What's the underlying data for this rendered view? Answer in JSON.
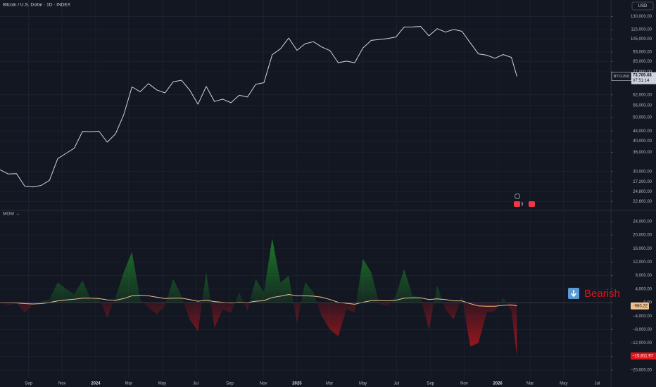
{
  "chart_data": [
    {
      "type": "line",
      "title": "Bitcoin / U.S. Dollar · 1D · INDEX",
      "currency": "USD",
      "symbol": "BTCUSD",
      "last_value_label": "73,769.68",
      "countdown": "07:51:14",
      "badge": "3",
      "log_scale": true,
      "color": "#d1d4dc",
      "xlim": [
        "2023-07-11",
        "2026-07-26"
      ],
      "ylim": [
        20900,
        152000
      ],
      "yticks": [
        {
          "value": 130000,
          "label": "130,000.00"
        },
        {
          "value": 115000,
          "label": "115,000.00"
        },
        {
          "value": 105000,
          "label": "105,000.00"
        },
        {
          "value": 93000,
          "label": "93,000.00"
        },
        {
          "value": 85000,
          "label": "85,000.00"
        },
        {
          "value": 77000,
          "label": "77,000.00"
        },
        {
          "value": 62000,
          "label": "62,000.00"
        },
        {
          "value": 56000,
          "label": "56,000.00"
        },
        {
          "value": 50000,
          "label": "50,000.00"
        },
        {
          "value": 44000,
          "label": "44,000.00"
        },
        {
          "value": 40000,
          "label": "40,000.00"
        },
        {
          "value": 36000,
          "label": "36,000.00"
        },
        {
          "value": 30000,
          "label": "30,000.00"
        },
        {
          "value": 27200,
          "label": "27,200.00"
        },
        {
          "value": 24800,
          "label": "24,800.00"
        },
        {
          "value": 22600,
          "label": "22,600.00"
        }
      ],
      "x": [
        "2023-07-11",
        "2023-07-26",
        "2023-08-10",
        "2023-08-25",
        "2023-09-09",
        "2023-09-24",
        "2023-10-09",
        "2023-10-24",
        "2023-11-08",
        "2023-11-23",
        "2023-12-08",
        "2023-12-23",
        "2024-01-07",
        "2024-01-22",
        "2024-02-06",
        "2024-02-21",
        "2024-03-07",
        "2024-03-22",
        "2024-04-06",
        "2024-04-21",
        "2024-05-06",
        "2024-05-21",
        "2024-06-05",
        "2024-06-20",
        "2024-07-05",
        "2024-07-20",
        "2024-08-04",
        "2024-08-19",
        "2024-09-03",
        "2024-09-18",
        "2024-10-03",
        "2024-10-18",
        "2024-11-02",
        "2024-11-17",
        "2024-12-02",
        "2024-12-17",
        "2025-01-01",
        "2025-01-16",
        "2025-01-31",
        "2025-02-15",
        "2025-03-02",
        "2025-03-17",
        "2025-04-01",
        "2025-04-16",
        "2025-05-01",
        "2025-05-16",
        "2025-05-31",
        "2025-06-15",
        "2025-06-30",
        "2025-07-15",
        "2025-07-30",
        "2025-08-14",
        "2025-08-29",
        "2025-09-13",
        "2025-09-28",
        "2025-10-13",
        "2025-10-28",
        "2025-11-12",
        "2025-11-27",
        "2025-12-12",
        "2025-12-27",
        "2026-01-11",
        "2026-01-26",
        "2026-02-05"
      ],
      "values": [
        30500,
        29300,
        29400,
        26100,
        25900,
        26300,
        27600,
        33900,
        35600,
        37400,
        43800,
        43700,
        43900,
        39600,
        42800,
        51300,
        66800,
        63800,
        68900,
        64900,
        63100,
        70100,
        71100,
        64800,
        56700,
        67100,
        58200,
        59500,
        57500,
        61700,
        60700,
        68400,
        69500,
        90500,
        95800,
        106000,
        94400,
        100500,
        102400,
        97500,
        94200,
        84000,
        85200,
        84000,
        96500,
        103700,
        104600,
        105500,
        107100,
        117700,
        117800,
        118300,
        108300,
        115900,
        112200,
        115000,
        113000,
        101500,
        91300,
        90200,
        87600,
        90700,
        88300,
        73769.68
      ]
    },
    {
      "type": "area",
      "title": "MOM →",
      "annotation": "Bearish",
      "current_value_label": "−15,811.97",
      "xlim": [
        "2023-07-11",
        "2026-07-26"
      ],
      "ylim": [
        -22500,
        27100
      ],
      "yticks": [
        {
          "value": 24000,
          "label": "24,000.00"
        },
        {
          "value": 20000,
          "label": "20,000.00"
        },
        {
          "value": 16000,
          "label": "16,000.00"
        },
        {
          "value": 12000,
          "label": "12,000.00"
        },
        {
          "value": 8000,
          "label": "8,000.00"
        },
        {
          "value": 4000,
          "label": "4,000.00"
        },
        {
          "value": 0,
          "label": "0.00"
        },
        {
          "value": -4000,
          "label": "−4,000.00"
        },
        {
          "value": -8000,
          "label": "−8,000.00"
        },
        {
          "value": -12000,
          "label": "−12,000.00"
        },
        {
          "value": -16000,
          "label": "−16,000.00"
        },
        {
          "value": -20000,
          "label": "−20,000.00"
        }
      ],
      "xticks": [
        {
          "value": "2023-09-01",
          "label": "Sep"
        },
        {
          "value": "2023-11-01",
          "label": "Nov"
        },
        {
          "value": "2024-01-01",
          "label": "2024"
        },
        {
          "value": "2024-03-01",
          "label": "Mar"
        },
        {
          "value": "2024-05-01",
          "label": "May"
        },
        {
          "value": "2024-07-01",
          "label": "Jul"
        },
        {
          "value": "2024-09-01",
          "label": "Sep"
        },
        {
          "value": "2024-11-01",
          "label": "Nov"
        },
        {
          "value": "2025-01-01",
          "label": "2025"
        },
        {
          "value": "2025-03-01",
          "label": "Mar"
        },
        {
          "value": "2025-05-01",
          "label": "May"
        },
        {
          "value": "2025-07-01",
          "label": "Jul"
        },
        {
          "value": "2025-09-01",
          "label": "Sep"
        },
        {
          "value": "2025-11-01",
          "label": "Nov"
        },
        {
          "value": "2026-01-01",
          "label": "2026"
        },
        {
          "value": "2026-03-01",
          "label": "Mar"
        },
        {
          "value": "2026-05-01",
          "label": "May"
        },
        {
          "value": "2026-07-01",
          "label": "Jul"
        }
      ],
      "x": [
        "2023-07-11",
        "2023-07-26",
        "2023-08-10",
        "2023-08-25",
        "2023-09-09",
        "2023-09-24",
        "2023-10-09",
        "2023-10-24",
        "2023-11-08",
        "2023-11-23",
        "2023-12-08",
        "2023-12-23",
        "2024-01-07",
        "2024-01-22",
        "2024-02-06",
        "2024-02-21",
        "2024-03-07",
        "2024-03-22",
        "2024-04-06",
        "2024-04-21",
        "2024-05-06",
        "2024-05-21",
        "2024-06-05",
        "2024-06-20",
        "2024-07-05",
        "2024-07-20",
        "2024-08-04",
        "2024-08-19",
        "2024-09-03",
        "2024-09-18",
        "2024-10-03",
        "2024-10-18",
        "2024-11-02",
        "2024-11-17",
        "2024-12-02",
        "2024-12-17",
        "2025-01-01",
        "2025-01-16",
        "2025-01-31",
        "2025-02-15",
        "2025-03-02",
        "2025-03-17",
        "2025-04-01",
        "2025-04-16",
        "2025-05-01",
        "2025-05-16",
        "2025-05-31",
        "2025-06-15",
        "2025-06-30",
        "2025-07-15",
        "2025-07-30",
        "2025-08-14",
        "2025-08-29",
        "2025-09-13",
        "2025-09-28",
        "2025-10-13",
        "2025-10-28",
        "2025-11-12",
        "2025-11-27",
        "2025-12-12",
        "2025-12-27",
        "2026-01-11",
        "2026-01-26",
        "2026-02-05"
      ],
      "series": [
        {
          "color": "#1f9a2a",
          "negative_color": "#e0141a",
          "values": [
            0,
            -800,
            -300,
            -3000,
            -500,
            400,
            1000,
            6000,
            4000,
            2500,
            6500,
            1000,
            1500,
            -4500,
            1500,
            9000,
            15000,
            1000,
            -1500,
            -3500,
            -1000,
            7000,
            2000,
            -5000,
            -8500,
            9000,
            -7500,
            -2000,
            -3000,
            3000,
            -2500,
            7000,
            3000,
            19000,
            6000,
            8000,
            -6000,
            6000,
            3000,
            -4000,
            -8000,
            -10000,
            -2000,
            -3000,
            13000,
            9000,
            -500,
            -1000,
            2000,
            10000,
            2000,
            1500,
            -8000,
            5000,
            -2000,
            -5000,
            2000,
            -13000,
            -12000,
            -3000,
            -2500,
            1500,
            -2500,
            -15811.97
          ]
        },
        {
          "color": "#f0c08c",
          "value_label": "-980.22",
          "values": [
            0,
            0,
            -100,
            -300,
            -400,
            -300,
            0,
            500,
            800,
            1000,
            1300,
            1300,
            1200,
            800,
            700,
            1200,
            2000,
            2200,
            2000,
            1600,
            1200,
            1300,
            1300,
            900,
            400,
            700,
            300,
            100,
            -100,
            100,
            0,
            400,
            600,
            1500,
            1900,
            2400,
            2000,
            2000,
            1900,
            1600,
            900,
            100,
            -200,
            -500,
            100,
            600,
            600,
            500,
            700,
            1300,
            1400,
            1400,
            900,
            1100,
            900,
            500,
            500,
            -300,
            -1000,
            -1100,
            -1100,
            -800,
            -700,
            -980.22
          ]
        }
      ]
    }
  ]
}
